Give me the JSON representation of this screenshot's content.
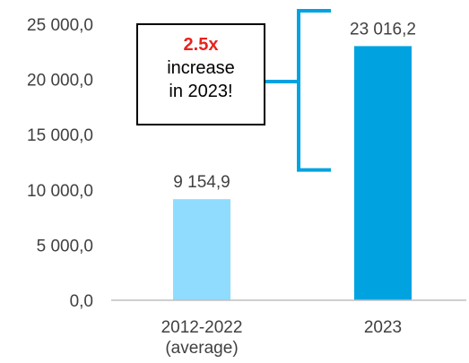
{
  "chart_data": {
    "type": "bar",
    "categories": [
      [
        "2012-2022",
        "(average)"
      ],
      [
        "2023"
      ]
    ],
    "values": [
      9154.9,
      23016.2
    ],
    "value_labels": [
      "9 154,9",
      "23 016,2"
    ],
    "bar_colors": [
      "#8fdcff",
      "#00a3e0"
    ],
    "ylim": [
      0,
      25000
    ],
    "yticks": [
      {
        "value": 0,
        "label": "0,0"
      },
      {
        "value": 5000,
        "label": "5 000,0"
      },
      {
        "value": 10000,
        "label": "10 000,0"
      },
      {
        "value": 15000,
        "label": "15 000,0"
      },
      {
        "value": 20000,
        "label": "20 000,0"
      },
      {
        "value": 25000,
        "label": "25 000,0"
      }
    ],
    "grid": false,
    "title": "",
    "xlabel": "",
    "ylabel": "",
    "annotation": {
      "highlight": "2.5x",
      "lines": [
        "increase",
        "in 2023!"
      ],
      "highlight_color": "#e8221c",
      "bracket_color": "#00a3e0",
      "bracket_range": [
        11800,
        25000
      ]
    }
  }
}
